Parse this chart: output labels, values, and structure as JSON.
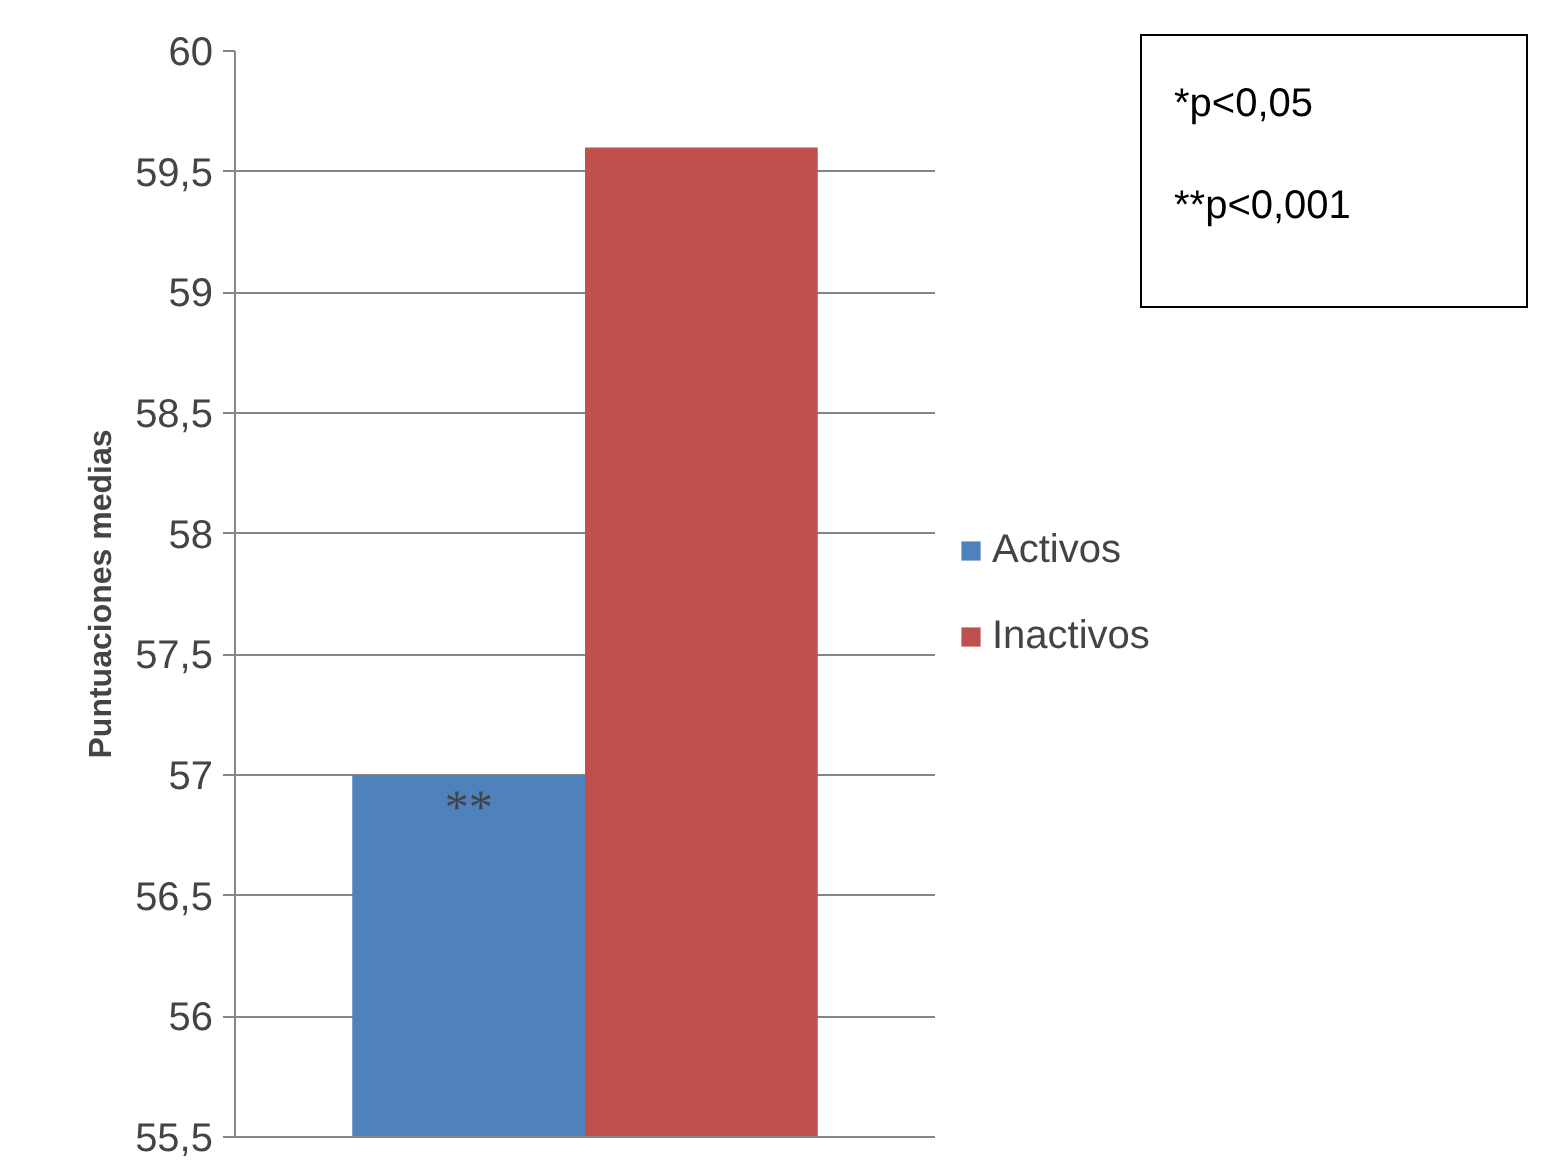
{
  "chart_data": {
    "type": "bar",
    "ylabel": "Puntuaciones medias",
    "categories": [
      null
    ],
    "series": [
      {
        "name": "Activos",
        "color": "#4f81bd",
        "values": [
          57
        ]
      },
      {
        "name": "Inactivos",
        "color": "#c0504d",
        "values": [
          59.6
        ]
      }
    ],
    "ylim": [
      55.5,
      60
    ],
    "yticks": [
      {
        "value": 55.5,
        "label": "55,5"
      },
      {
        "value": 56,
        "label": "56"
      },
      {
        "value": 56.5,
        "label": "56,5"
      },
      {
        "value": 57,
        "label": "57"
      },
      {
        "value": 57.5,
        "label": "57,5"
      },
      {
        "value": 58,
        "label": "58"
      },
      {
        "value": 58.5,
        "label": "58,5"
      },
      {
        "value": 59,
        "label": "59"
      },
      {
        "value": 59.5,
        "label": "59,5"
      },
      {
        "value": 60,
        "label": "60"
      }
    ],
    "grid": "y",
    "legend": "right",
    "annotations": [
      {
        "text": "**",
        "y": 57
      },
      "*p<0,05",
      "**p<0,001"
    ]
  }
}
